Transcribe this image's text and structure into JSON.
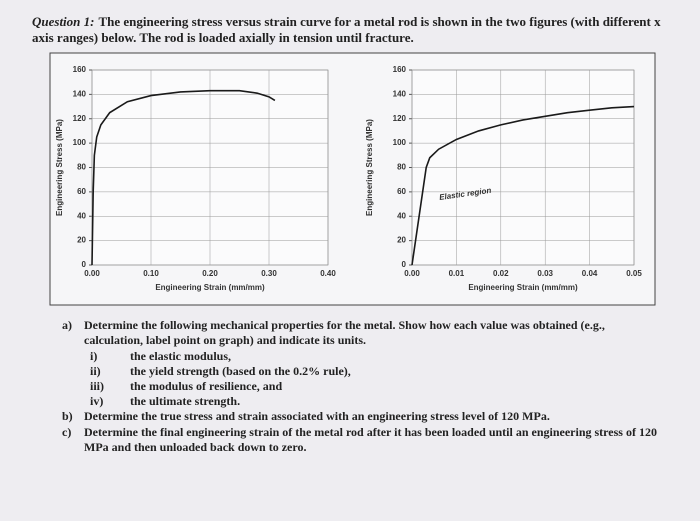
{
  "question": {
    "label": "Question 1:",
    "text": "The engineering stress versus strain curve for a metal rod is shown in the two figures (with different x axis ranges) below. The rod is loaded axially in tension until fracture."
  },
  "chart_data": [
    {
      "type": "line",
      "xlabel": "Engineering Strain (mm/mm)",
      "ylabel": "Engineering Stress (MPa)",
      "x": [
        0,
        0.002,
        0.004,
        0.008,
        0.015,
        0.03,
        0.06,
        0.1,
        0.15,
        0.2,
        0.25,
        0.28,
        0.3,
        0.31
      ],
      "values": [
        0,
        60,
        90,
        105,
        115,
        125,
        134,
        139,
        142,
        143,
        143,
        141,
        138,
        135
      ],
      "color": "#1a1a1a",
      "xlim": [
        0,
        0.4
      ],
      "xticks": [
        {
          "value": 0,
          "label": "0.00"
        },
        {
          "value": 0.1,
          "label": "0.10"
        },
        {
          "value": 0.2,
          "label": "0.20"
        },
        {
          "value": 0.3,
          "label": "0.30"
        },
        {
          "value": 0.4,
          "label": "0.40"
        }
      ],
      "ylim": [
        0,
        160
      ],
      "yticks": [
        0,
        20,
        40,
        60,
        80,
        100,
        120,
        140,
        160
      ],
      "grid": true
    },
    {
      "type": "line",
      "xlabel": "Engineering Strain (mm/mm)",
      "ylabel": "Engineering Stress (MPa)",
      "x": [
        0,
        0.0032,
        0.004,
        0.006,
        0.01,
        0.015,
        0.02,
        0.025,
        0.03,
        0.035,
        0.04,
        0.045,
        0.05
      ],
      "values": [
        0,
        80,
        88,
        95,
        103,
        110,
        115,
        119,
        122,
        125,
        127,
        129,
        130
      ],
      "color": "#1a1a1a",
      "xlim": [
        0,
        0.05
      ],
      "xticks": [
        {
          "value": 0,
          "label": "0.00"
        },
        {
          "value": 0.01,
          "label": "0.01"
        },
        {
          "value": 0.02,
          "label": "0.02"
        },
        {
          "value": 0.03,
          "label": "0.03"
        },
        {
          "value": 0.04,
          "label": "0.04"
        },
        {
          "value": 0.05,
          "label": "0.05"
        }
      ],
      "ylim": [
        0,
        160
      ],
      "yticks": [
        0,
        20,
        40,
        60,
        80,
        100,
        120,
        140,
        160
      ],
      "grid": true,
      "annotation": "Elastic region"
    }
  ],
  "parts": [
    {
      "label": "a)",
      "text": "Determine the following mechanical properties for the metal. Show how each value was obtained (e.g., calculation, label point on graph) and indicate its units.",
      "items": [
        {
          "label": "i)",
          "text": "the elastic modulus,"
        },
        {
          "label": "ii)",
          "text": "the yield strength (based on the 0.2% rule),"
        },
        {
          "label": "iii)",
          "text": "the modulus of resilience, and"
        },
        {
          "label": "iv)",
          "text": "the ultimate strength."
        }
      ]
    },
    {
      "label": "b)",
      "text": "Determine the true stress and strain associated with an engineering stress level of 120 MPa."
    },
    {
      "label": "c)",
      "text": "Determine the final engineering strain of the metal rod after it has been loaded until an engineering stress of 120 MPa and then unloaded back down to zero."
    }
  ]
}
